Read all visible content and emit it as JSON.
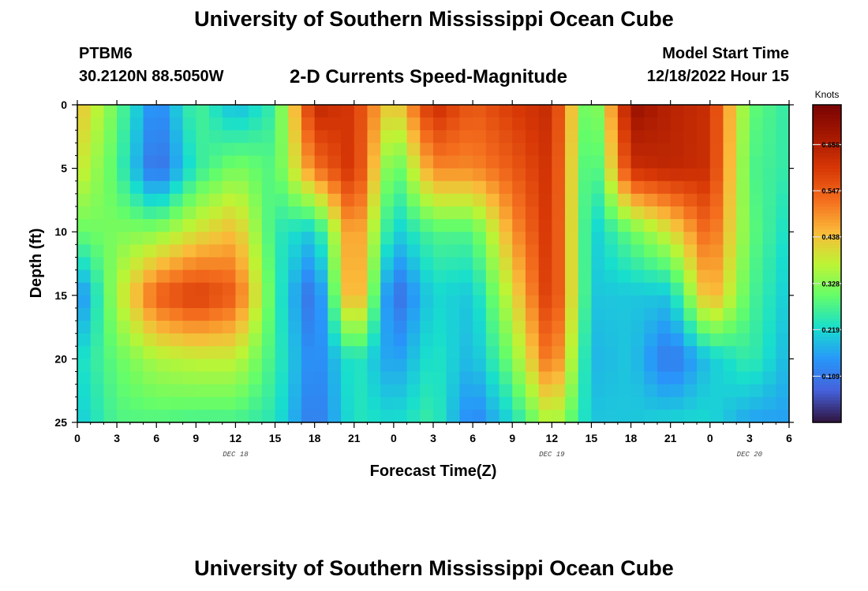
{
  "header": {
    "title": "University of Southern Mississippi Ocean Cube",
    "station": "PTBM6",
    "coords": "30.2120N  88.5050W",
    "subtitle": "2-D Currents Speed-Magnitude",
    "model_label": "Model Start Time",
    "model_time": "12/18/2022 Hour 15"
  },
  "footer": {
    "title": "University of Southern Mississippi Ocean Cube"
  },
  "chart_data": {
    "type": "heatmap",
    "xlabel": "Forecast Time(Z)",
    "ylabel": "Depth (ft)",
    "x_tick_labels": [
      "0",
      "3",
      "6",
      "9",
      "12",
      "15",
      "18",
      "21",
      "0",
      "3",
      "6",
      "9",
      "12",
      "15",
      "18",
      "21",
      "0",
      "3",
      "6"
    ],
    "y_tick_labels": [
      "0",
      "5",
      "10",
      "15",
      "20",
      "25"
    ],
    "date_labels": [
      {
        "label": "DEC 18",
        "at_hour": 12
      },
      {
        "label": "DEC 19",
        "at_hour": 36
      },
      {
        "label": "DEC 20",
        "at_hour": 51
      }
    ],
    "xlim": [
      0,
      54
    ],
    "ylim": [
      0,
      25
    ],
    "colorbar": {
      "unit": "Knots",
      "ticks": [
        "0.656",
        "0.547",
        "0.438",
        "0.328",
        "0.219",
        "0.109"
      ],
      "tick_values": [
        0.656,
        0.547,
        0.438,
        0.328,
        0.219,
        0.109
      ],
      "range": [
        0.0,
        0.75
      ]
    },
    "grid": {
      "hours": [
        0,
        3,
        6,
        9,
        12,
        15,
        18,
        21,
        24,
        27,
        30,
        33,
        36,
        39,
        42,
        45,
        48,
        51,
        54
      ],
      "depths": [
        0,
        5,
        10,
        15,
        20,
        25
      ],
      "values": [
        [
          0.45,
          0.3,
          0.12,
          0.28,
          0.18,
          0.26,
          0.64,
          0.6,
          0.4,
          0.63,
          0.55,
          0.6,
          0.63,
          0.25,
          0.7,
          0.65,
          0.62,
          0.3,
          0.25
        ],
        [
          0.4,
          0.28,
          0.08,
          0.25,
          0.32,
          0.28,
          0.52,
          0.62,
          0.27,
          0.5,
          0.5,
          0.55,
          0.62,
          0.22,
          0.62,
          0.64,
          0.62,
          0.28,
          0.25
        ],
        [
          0.3,
          0.32,
          0.33,
          0.4,
          0.45,
          0.25,
          0.2,
          0.52,
          0.2,
          0.28,
          0.28,
          0.48,
          0.62,
          0.2,
          0.3,
          0.4,
          0.55,
          0.3,
          0.22
        ],
        [
          0.12,
          0.36,
          0.55,
          0.6,
          0.55,
          0.26,
          0.08,
          0.52,
          0.08,
          0.22,
          0.2,
          0.4,
          0.62,
          0.2,
          0.2,
          0.2,
          0.48,
          0.28,
          0.2
        ],
        [
          0.22,
          0.3,
          0.36,
          0.38,
          0.38,
          0.26,
          0.12,
          0.25,
          0.15,
          0.24,
          0.18,
          0.32,
          0.55,
          0.18,
          0.2,
          0.1,
          0.2,
          0.26,
          0.18
        ],
        [
          0.2,
          0.28,
          0.28,
          0.27,
          0.27,
          0.24,
          0.1,
          0.24,
          0.22,
          0.26,
          0.12,
          0.22,
          0.38,
          0.2,
          0.2,
          0.22,
          0.22,
          0.16,
          0.16
        ]
      ]
    }
  }
}
